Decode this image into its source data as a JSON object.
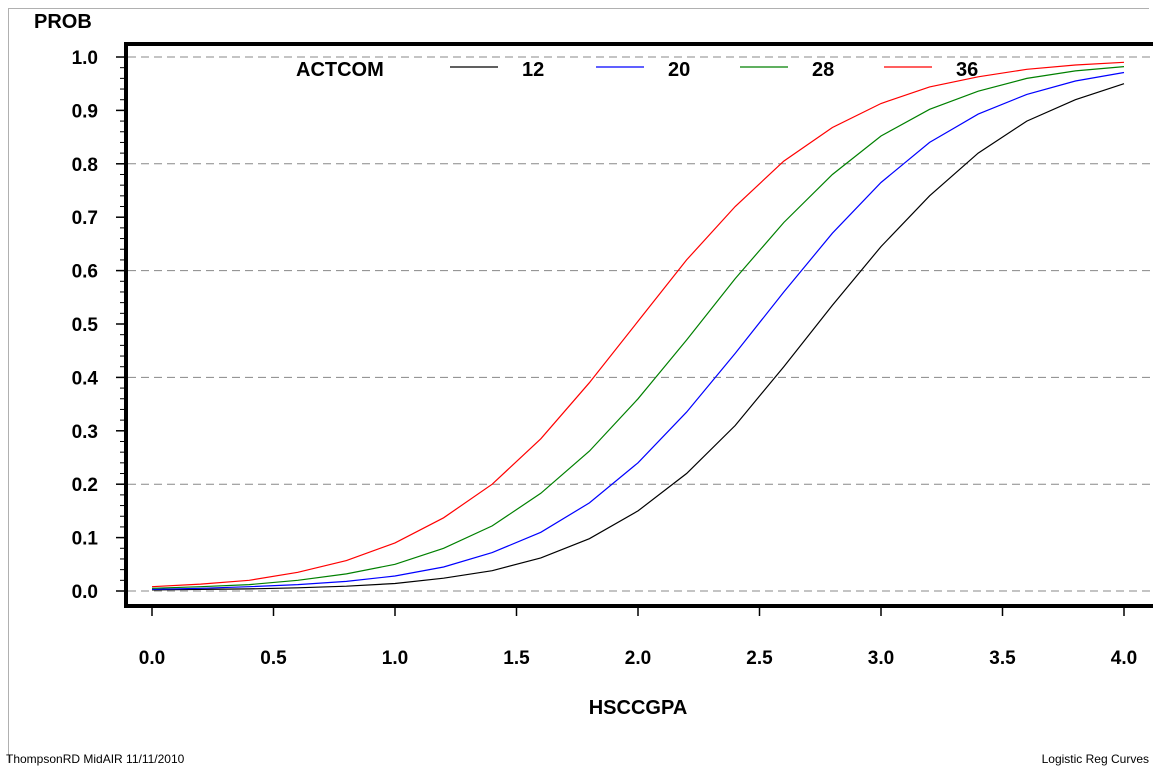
{
  "chart_data": {
    "type": "line",
    "ylabel": "PROB",
    "xlabel": "HSCCGPA",
    "xlim": [
      0.0,
      4.0
    ],
    "ylim": [
      0.0,
      1.0
    ],
    "x_ticks": [
      "0.0",
      "0.5",
      "1.0",
      "1.5",
      "2.0",
      "2.5",
      "3.0",
      "3.5",
      "4.0"
    ],
    "y_ticks": [
      "0.0",
      "0.1",
      "0.2",
      "0.3",
      "0.4",
      "0.5",
      "0.6",
      "0.7",
      "0.8",
      "0.9",
      "1.0"
    ],
    "grid": "horizontal dashed",
    "legend": {
      "title": "ACTCOM",
      "placement": "top"
    },
    "x": [
      0.0,
      0.2,
      0.4,
      0.6,
      0.8,
      1.0,
      1.2,
      1.4,
      1.6,
      1.8,
      2.0,
      2.2,
      2.4,
      2.6,
      2.8,
      3.0,
      3.2,
      3.4,
      3.6,
      3.8,
      4.0
    ],
    "series": [
      {
        "name": "12",
        "color": "#000000",
        "values": [
          0.002,
          0.003,
          0.004,
          0.006,
          0.009,
          0.014,
          0.024,
          0.038,
          0.062,
          0.098,
          0.15,
          0.22,
          0.31,
          0.42,
          0.535,
          0.645,
          0.74,
          0.82,
          0.88,
          0.92,
          0.95
        ]
      },
      {
        "name": "20",
        "color": "#0000ff",
        "values": [
          0.003,
          0.005,
          0.008,
          0.012,
          0.018,
          0.028,
          0.045,
          0.072,
          0.11,
          0.165,
          0.24,
          0.335,
          0.445,
          0.56,
          0.67,
          0.765,
          0.84,
          0.893,
          0.93,
          0.955,
          0.971
        ]
      },
      {
        "name": "28",
        "color": "#008000",
        "values": [
          0.005,
          0.008,
          0.012,
          0.02,
          0.032,
          0.05,
          0.08,
          0.122,
          0.183,
          0.262,
          0.36,
          0.47,
          0.585,
          0.69,
          0.78,
          0.852,
          0.902,
          0.936,
          0.96,
          0.974,
          0.982
        ]
      },
      {
        "name": "36",
        "color": "#ff0000",
        "values": [
          0.008,
          0.013,
          0.02,
          0.035,
          0.057,
          0.09,
          0.137,
          0.2,
          0.285,
          0.39,
          0.505,
          0.62,
          0.72,
          0.805,
          0.868,
          0.913,
          0.944,
          0.963,
          0.977,
          0.985,
          0.99
        ]
      }
    ]
  },
  "footer": {
    "left": "ThompsonRD MidAIR 11/11/2010",
    "right": "Logistic Reg Curves"
  }
}
